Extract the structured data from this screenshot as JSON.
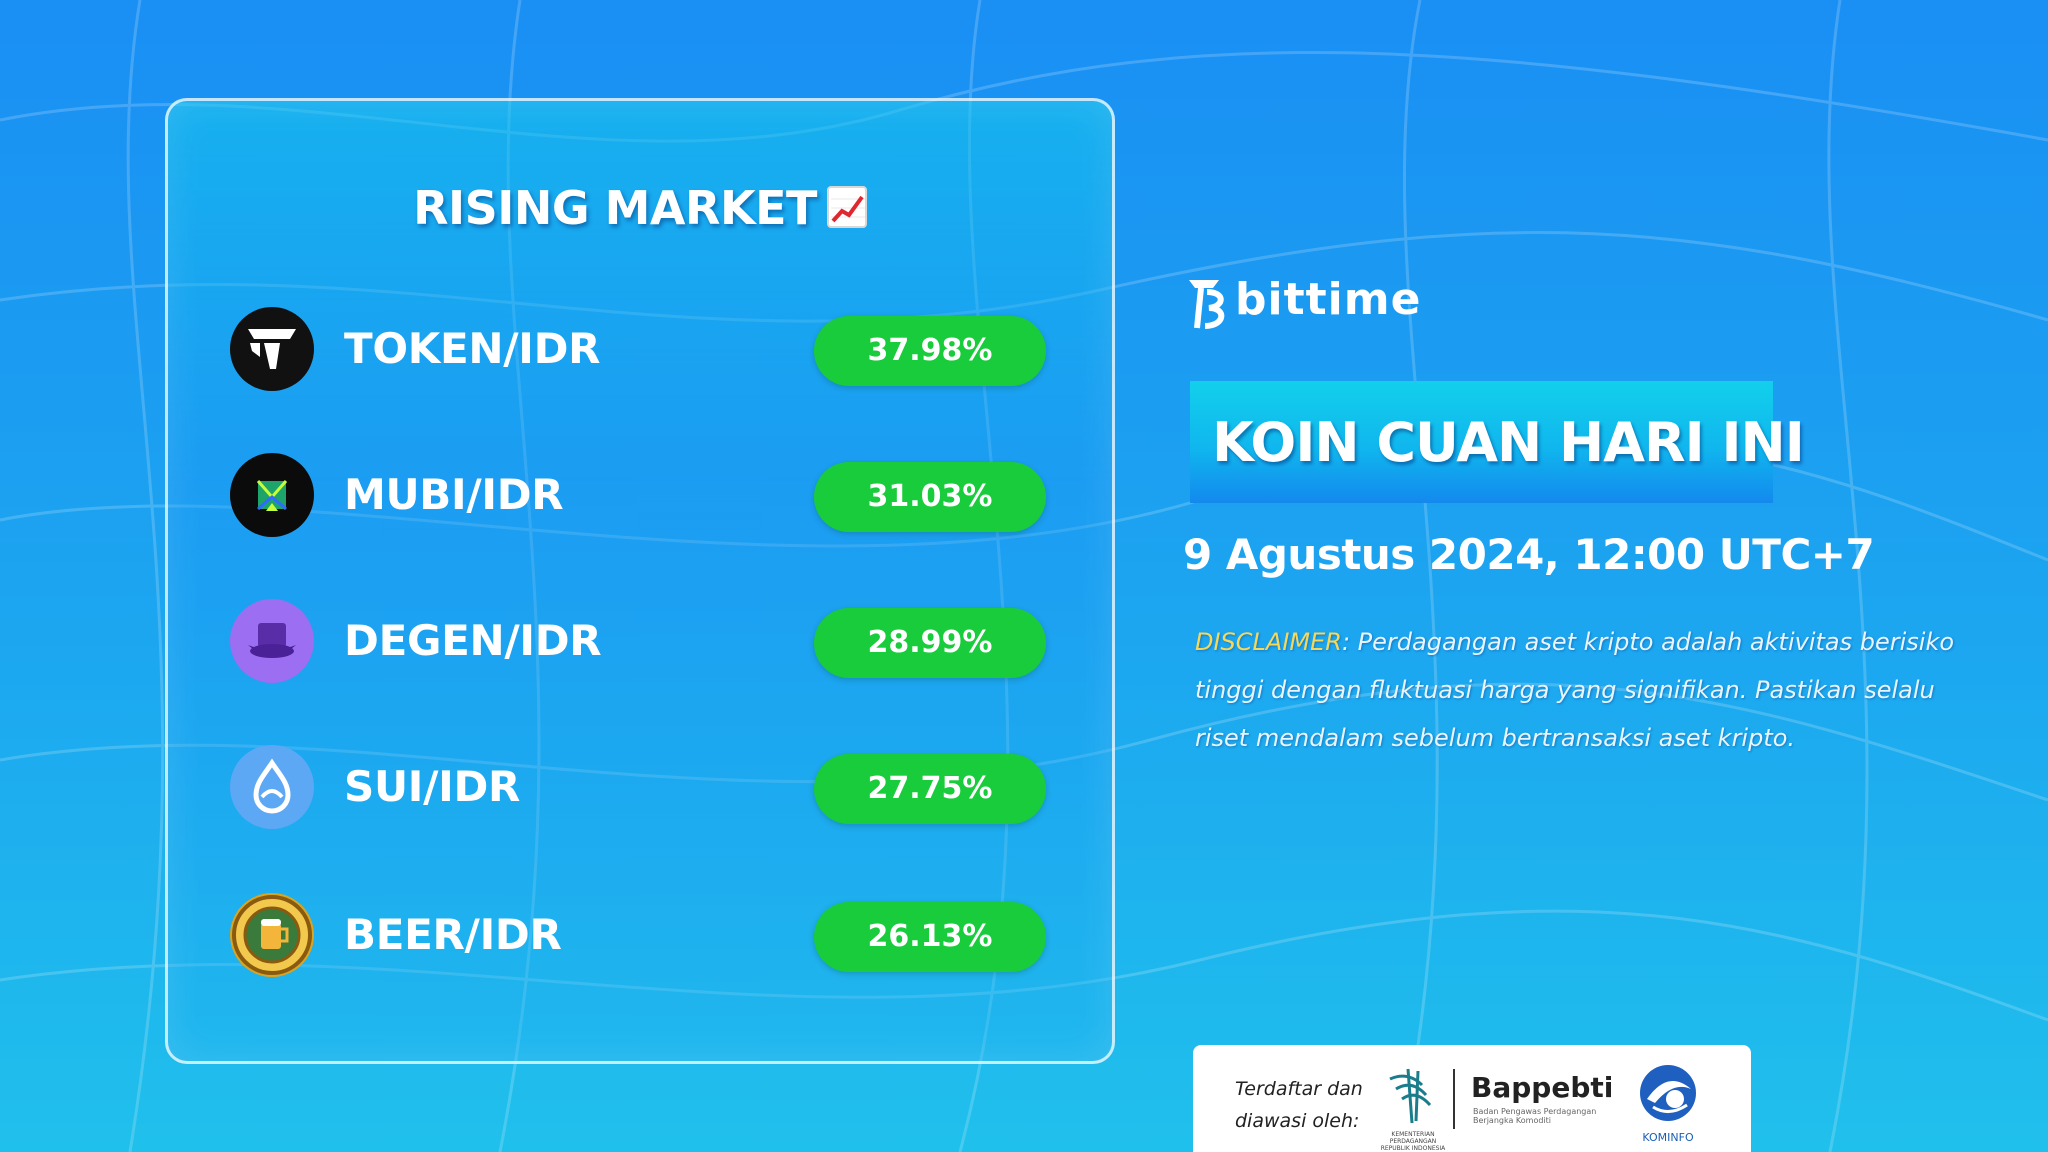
{
  "card": {
    "title": "RISING MARKET",
    "title_icon": "chart-increasing-icon"
  },
  "rows": [
    {
      "pair": "TOKEN/IDR",
      "change": "37.98%",
      "icon": "token-coin-icon",
      "icon_color": "#111111"
    },
    {
      "pair": "MUBI/IDR",
      "change": "31.03%",
      "icon": "mubi-coin-icon",
      "icon_color": "#0b0b0b"
    },
    {
      "pair": "DEGEN/IDR",
      "change": "28.99%",
      "icon": "degen-hat-icon",
      "icon_color": "#9b6ef2"
    },
    {
      "pair": "SUI/IDR",
      "change": "27.75%",
      "icon": "sui-drop-icon",
      "icon_color": "#5da8f5"
    },
    {
      "pair": "BEER/IDR",
      "change": "26.13%",
      "icon": "beer-coin-icon",
      "icon_color": "#d9a520"
    }
  ],
  "brand": {
    "name": "bittime",
    "icon": "bittime-logo-icon"
  },
  "headline": "KOIN CUAN HARI INI",
  "datetime": "9 Agustus 2024, 12:00 UTC+7",
  "disclaimer": {
    "label": "DISCLAIMER",
    "text": ": Perdagangan aset kripto adalah aktivitas berisiko tinggi dengan fluktuasi harga yang signifikan. Pastikan selalu riset mendalam sebelum bertransaksi aset kripto."
  },
  "regulators": {
    "intro": "Terdaftar dan diawasi oleh:",
    "kemendag_caption": "KEMENTERIAN PERDAGANGAN REPUBLIK INDONESIA",
    "bappebti": "Bappebti",
    "bappebti_sub": "Badan Pengawas Perdagangan Berjangka Komoditi",
    "kominfo": "KOMINFO"
  },
  "colors": {
    "positive_badge": "#19cc3c",
    "background_top": "#1a8ff4",
    "background_bottom": "#20c0ec",
    "disclaimer_label": "#f5d75a"
  }
}
